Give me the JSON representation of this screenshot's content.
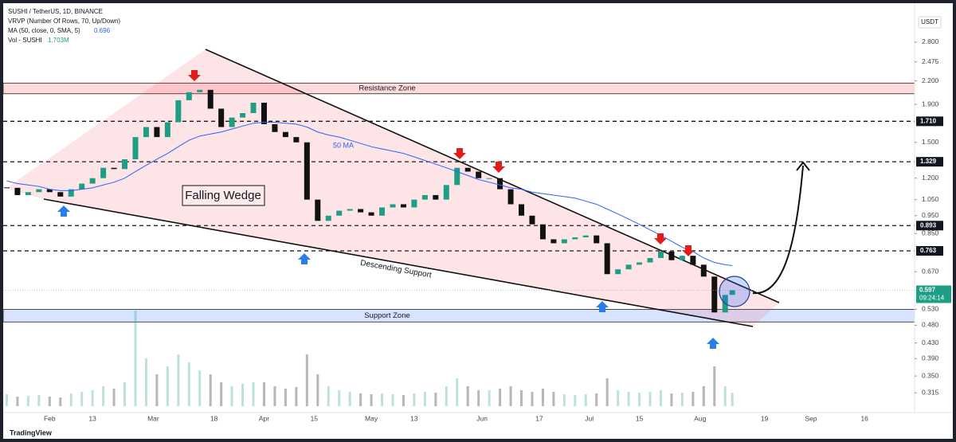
{
  "chart_data": {
    "type": "candlestick",
    "symbol": "SUSHI / TetherUS, 1D, BINANCE",
    "indicator": "VRVP (Number Of Rows, 70, Up/Down)",
    "currency": "USDT",
    "brand": "TradingView",
    "log_scale": true,
    "up_color": "#1e9e84",
    "down_color": "#111111",
    "x": [
      "01-20",
      "01-23",
      "01-26",
      "01-29",
      "02-01",
      "02-04",
      "02-07",
      "02-10",
      "02-13",
      "02-16",
      "02-19",
      "02-22",
      "02-25",
      "02-28",
      "03-02",
      "03-05",
      "03-08",
      "03-11",
      "03-14",
      "03-17",
      "03-20",
      "03-23",
      "03-26",
      "03-29",
      "04-01",
      "04-04",
      "04-07",
      "04-10",
      "04-13",
      "04-16",
      "04-19",
      "04-22",
      "04-25",
      "04-28",
      "05-01",
      "05-04",
      "05-07",
      "05-10",
      "05-13",
      "05-16",
      "05-19",
      "05-22",
      "05-25",
      "05-28",
      "05-31",
      "06-03",
      "06-06",
      "06-09",
      "06-12",
      "06-15",
      "06-18",
      "06-21",
      "06-24",
      "06-27",
      "06-30",
      "07-03",
      "07-06",
      "07-09",
      "07-12",
      "07-15",
      "07-18",
      "07-21",
      "07-24",
      "07-27",
      "07-30",
      "08-02",
      "08-05",
      "08-08",
      "08-10"
    ],
    "close": [
      1.13,
      1.08,
      1.1,
      1.12,
      1.1,
      1.07,
      1.12,
      1.16,
      1.2,
      1.28,
      1.27,
      1.35,
      1.55,
      1.65,
      1.55,
      1.7,
      1.95,
      2.05,
      2.08,
      1.85,
      1.65,
      1.75,
      1.8,
      1.92,
      1.68,
      1.6,
      1.55,
      1.5,
      1.05,
      0.92,
      0.95,
      0.98,
      0.99,
      0.97,
      0.95,
      1.0,
      1.02,
      1.0,
      1.05,
      1.08,
      1.05,
      1.15,
      1.28,
      1.25,
      1.2,
      1.2,
      1.12,
      1.02,
      0.95,
      0.9,
      0.82,
      0.8,
      0.82,
      0.83,
      0.84,
      0.8,
      0.66,
      0.68,
      0.7,
      0.71,
      0.73,
      0.76,
      0.72,
      0.74,
      0.7,
      0.65,
      0.52,
      0.58,
      0.597
    ],
    "ma": {
      "name": "MA (50, close, 0, SMA, 5)",
      "color": "#2962ff",
      "values": [
        1.18,
        1.16,
        1.15,
        1.14,
        1.12,
        1.11,
        1.11,
        1.12,
        1.13,
        1.15,
        1.17,
        1.2,
        1.25,
        1.3,
        1.35,
        1.4,
        1.46,
        1.52,
        1.56,
        1.58,
        1.6,
        1.63,
        1.66,
        1.69,
        1.7,
        1.7,
        1.69,
        1.68,
        1.65,
        1.6,
        1.57,
        1.55,
        1.52,
        1.49,
        1.46,
        1.44,
        1.42,
        1.4,
        1.37,
        1.34,
        1.31,
        1.28,
        1.25,
        1.22,
        1.19,
        1.17,
        1.15,
        1.13,
        1.12,
        1.1,
        1.09,
        1.08,
        1.07,
        1.06,
        1.04,
        1.02,
        0.99,
        0.96,
        0.93,
        0.9,
        0.87,
        0.84,
        0.81,
        0.78,
        0.76,
        0.73,
        0.71,
        0.7,
        0.696
      ]
    },
    "volume": {
      "name": "Vol - SUSHI",
      "last_label": "1.703M",
      "values": [
        1.5,
        1.2,
        1.3,
        1.4,
        1.2,
        1.1,
        1.6,
        1.8,
        2.0,
        2.5,
        2.2,
        3.0,
        12.0,
        6.0,
        4.0,
        5.0,
        6.5,
        5.5,
        4.5,
        4.0,
        3.0,
        2.5,
        2.8,
        3.0,
        3.0,
        2.5,
        2.2,
        2.4,
        6.5,
        4.0,
        2.5,
        2.0,
        1.8,
        1.6,
        1.5,
        1.6,
        1.5,
        1.4,
        1.6,
        1.8,
        1.7,
        2.5,
        3.5,
        2.5,
        2.0,
        2.0,
        2.2,
        2.5,
        2.0,
        1.8,
        2.2,
        1.8,
        1.5,
        1.4,
        1.5,
        1.6,
        3.5,
        2.0,
        1.8,
        1.7,
        1.8,
        2.0,
        1.6,
        1.7,
        1.8,
        2.5,
        5.0,
        2.5,
        1.703
      ]
    },
    "ylim": [
      0.29,
      3.2
    ],
    "yticks": [
      {
        "value": 2.8,
        "label": "2.800"
      },
      {
        "value": 2.475,
        "label": "2.475"
      },
      {
        "value": 2.2,
        "label": "2.200"
      },
      {
        "value": 1.9,
        "label": "1.900"
      },
      {
        "value": 1.5,
        "label": "1.500"
      },
      {
        "value": 1.2,
        "label": "1.200"
      },
      {
        "value": 1.05,
        "label": "1.050"
      },
      {
        "value": 0.95,
        "label": "0.950"
      },
      {
        "value": 0.85,
        "label": "0.850"
      },
      {
        "value": 0.67,
        "label": "0.670"
      },
      {
        "value": 0.53,
        "label": "0.530"
      },
      {
        "value": 0.48,
        "label": "0.480"
      },
      {
        "value": 0.43,
        "label": "0.430"
      },
      {
        "value": 0.39,
        "label": "0.390"
      },
      {
        "value": 0.35,
        "label": "0.350"
      },
      {
        "value": 0.315,
        "label": "0.315"
      }
    ],
    "levels": [
      {
        "value": 1.71,
        "label": "1.710"
      },
      {
        "value": 1.329,
        "label": "1.329"
      },
      {
        "value": 0.893,
        "label": "0.893"
      },
      {
        "value": 0.763,
        "label": "0.763"
      }
    ],
    "countdown": "09:24:14",
    "xlim": [
      "01-19",
      "09-30"
    ],
    "xticks": [
      {
        "value": "02-01",
        "label": "Feb"
      },
      {
        "value": "02-13",
        "label": "13"
      },
      {
        "value": "03-01",
        "label": "Mar"
      },
      {
        "value": "03-18",
        "label": "18"
      },
      {
        "value": "04-01",
        "label": "Apr"
      },
      {
        "value": "04-15",
        "label": "15"
      },
      {
        "value": "05-01",
        "label": "May"
      },
      {
        "value": "05-13",
        "label": "13"
      },
      {
        "value": "06-01",
        "label": "Jun"
      },
      {
        "value": "06-17",
        "label": "17"
      },
      {
        "value": "07-01",
        "label": "Jul"
      },
      {
        "value": "07-15",
        "label": "15"
      },
      {
        "value": "08-01",
        "label": "Aug"
      },
      {
        "value": "08-19",
        "label": "19"
      },
      {
        "value": "09-01",
        "label": "Sep"
      },
      {
        "value": "09-16",
        "label": "16"
      }
    ],
    "zones": [
      {
        "label": "Resistance Zone",
        "top": 2.17,
        "bottom": 2.03,
        "color": "#f23645"
      },
      {
        "label": "Support Zone",
        "top": 0.53,
        "bottom": 0.49,
        "color": "#2962ff"
      }
    ],
    "annotations": {
      "wedge": "Falling Wedge",
      "ma": "50 MA",
      "support": "Descending Support"
    }
  }
}
